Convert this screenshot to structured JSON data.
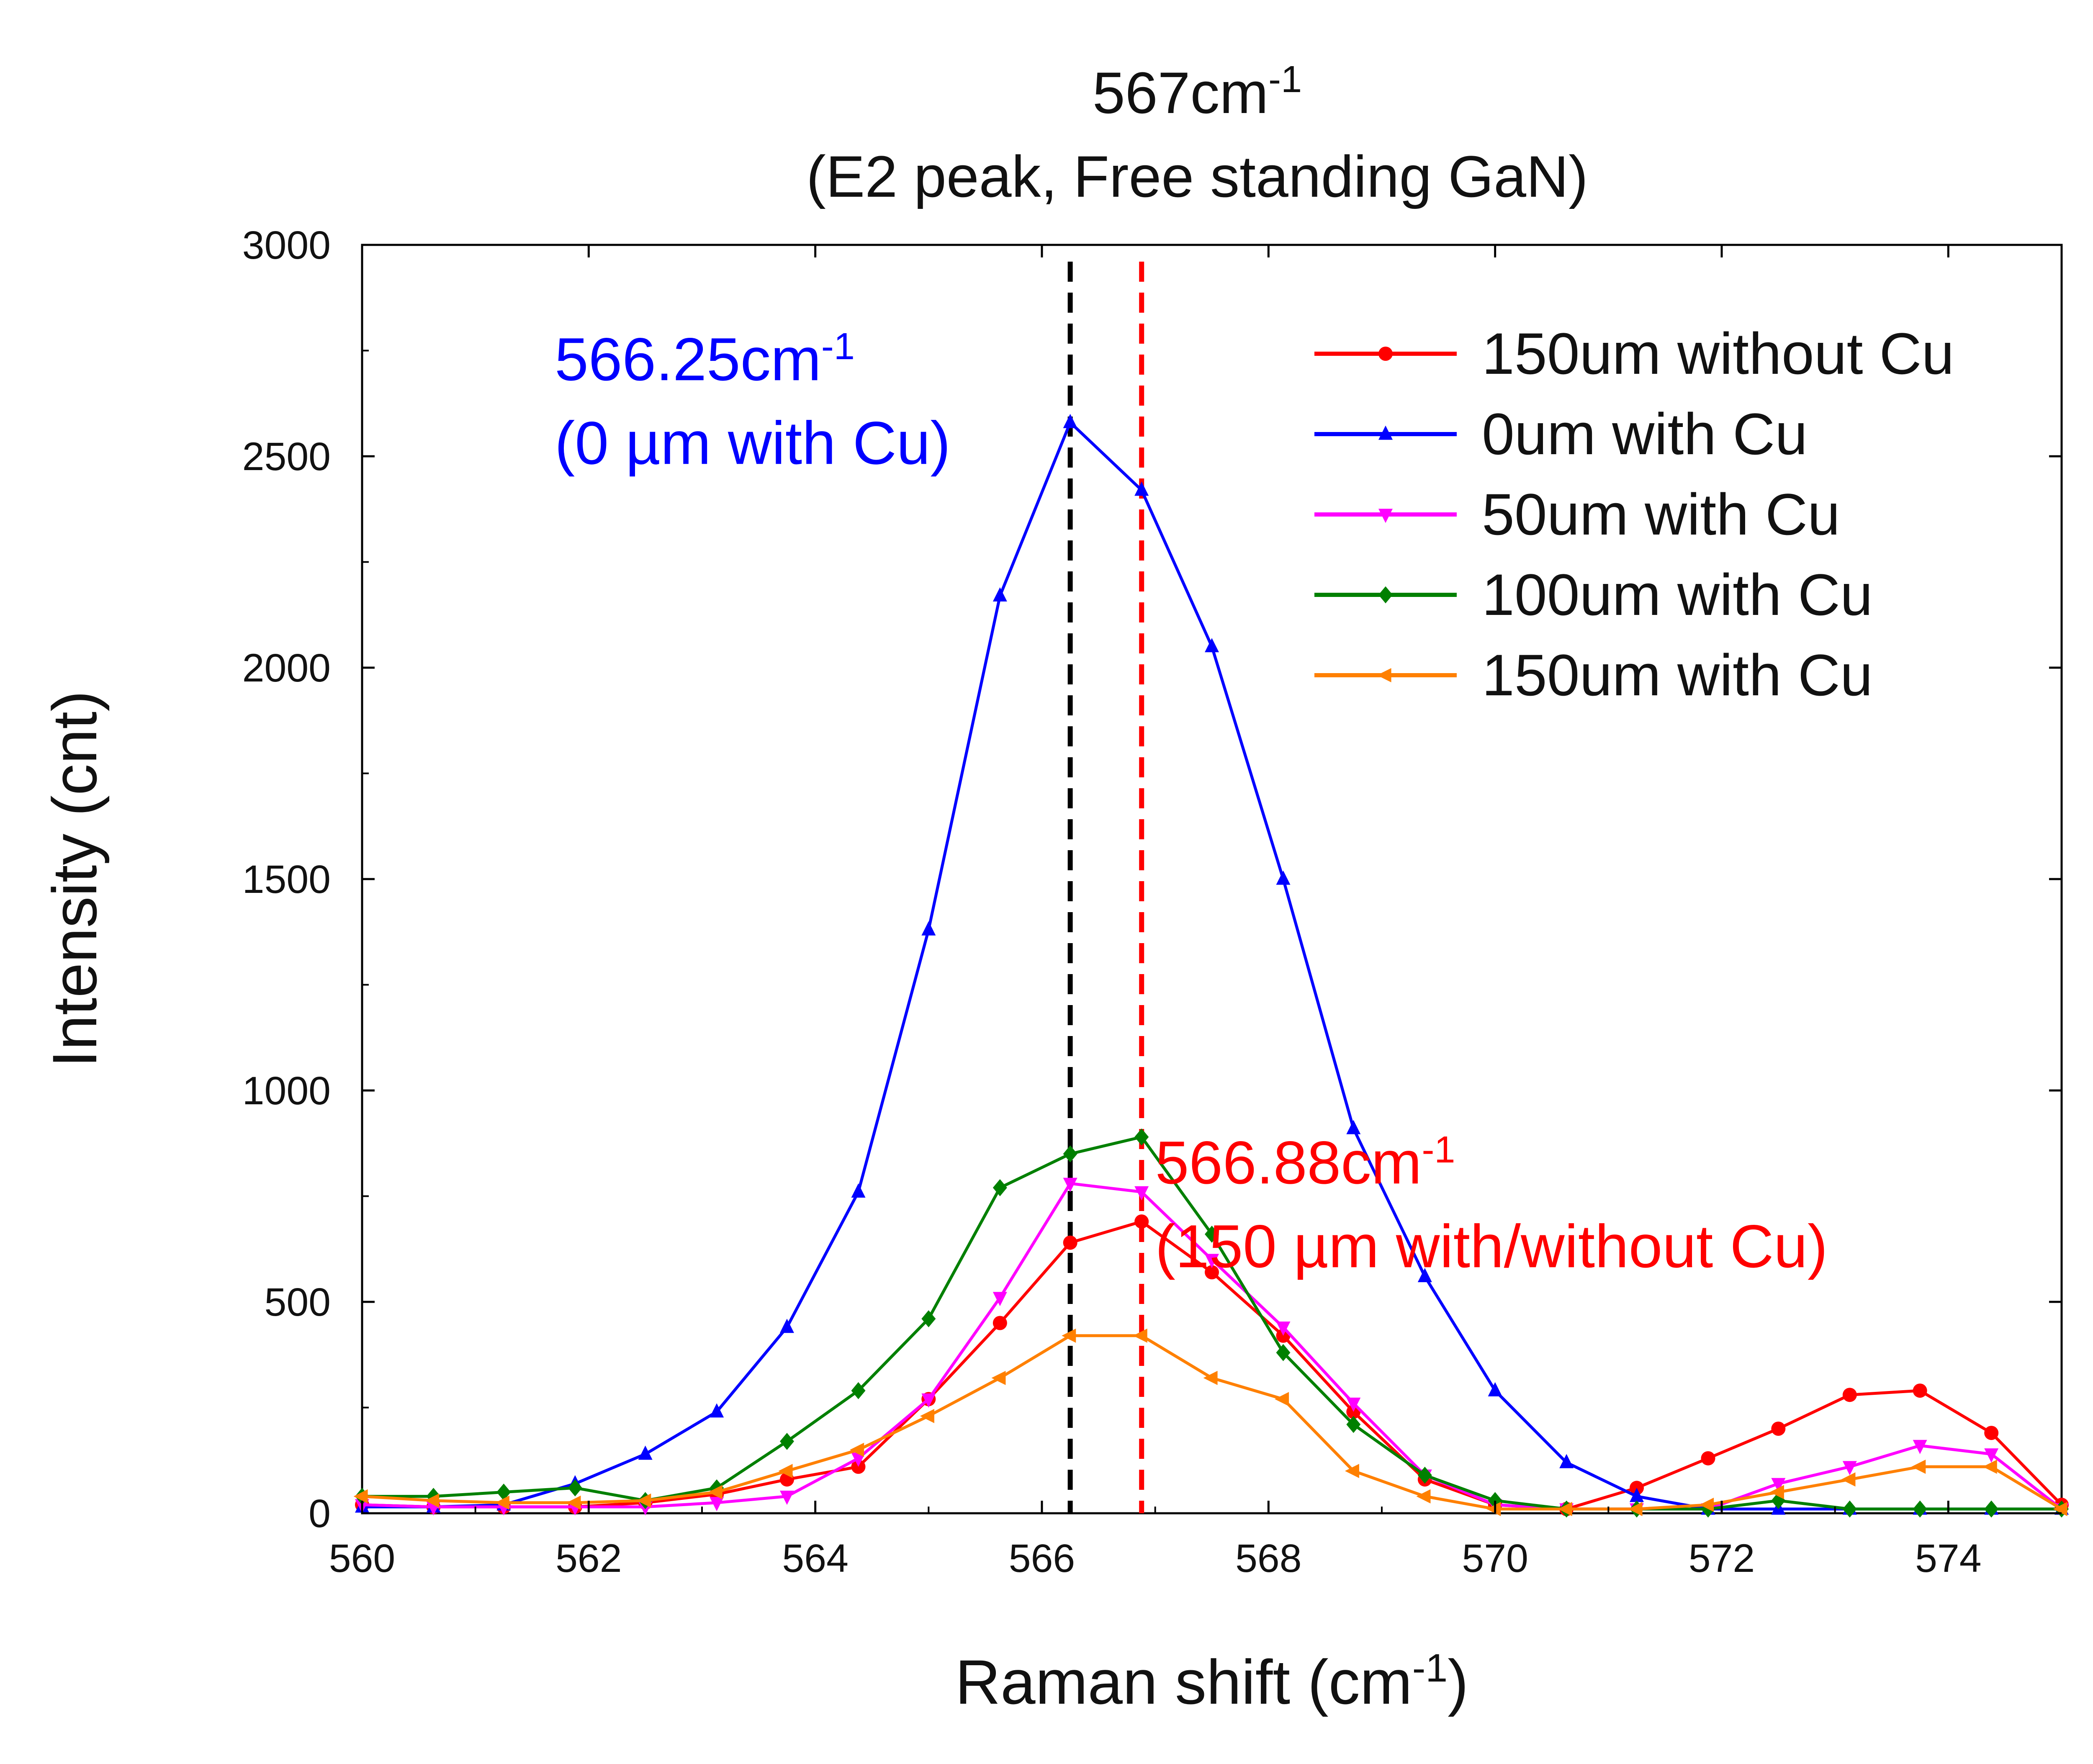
{
  "chart_data": {
    "type": "line",
    "title": {
      "line1_main": "567cm",
      "line1_sup": "-1",
      "line2": "(E2 peak, Free standing GaN)"
    },
    "xlabel": {
      "main": "Raman shift (cm",
      "sup": "-1",
      "close": ")"
    },
    "ylabel": "Intensity (cnt)",
    "xlim": [
      560,
      575
    ],
    "ylim": [
      0,
      3000
    ],
    "xticks": [
      560,
      562,
      564,
      566,
      568,
      570,
      572,
      574
    ],
    "yticks": [
      0,
      500,
      1000,
      1500,
      2000,
      2500,
      3000
    ],
    "xtick_labels": [
      "560",
      "562",
      "564",
      "566",
      "568",
      "570",
      "572",
      "574"
    ],
    "ytick_labels": [
      "0",
      "500",
      "1000",
      "1500",
      "2000",
      "2500",
      "3000"
    ],
    "grid": false,
    "legend_position": "top-right",
    "x": [
      560.0,
      560.63,
      561.25,
      561.88,
      562.5,
      563.13,
      563.75,
      564.38,
      565.0,
      565.63,
      566.25,
      566.88,
      567.5,
      568.13,
      568.75,
      569.38,
      570.0,
      570.63,
      571.25,
      571.88,
      572.5,
      573.13,
      573.75,
      574.38,
      575.0
    ],
    "series": [
      {
        "name": "150um without Cu",
        "color": "#ff0000",
        "marker": "circle",
        "values": [
          20,
          15,
          15,
          15,
          25,
          45,
          80,
          110,
          270,
          450,
          640,
          690,
          570,
          420,
          240,
          80,
          20,
          10,
          60,
          130,
          200,
          280,
          290,
          190,
          20
        ]
      },
      {
        "name": "0um with Cu",
        "color": "#0000ff",
        "marker": "triangle-up",
        "values": [
          15,
          15,
          20,
          70,
          140,
          240,
          440,
          760,
          1380,
          2170,
          2580,
          2420,
          2050,
          1500,
          910,
          560,
          290,
          120,
          40,
          10,
          10,
          10,
          10,
          10,
          10
        ]
      },
      {
        "name": "50um with Cu",
        "color": "#ff00ff",
        "marker": "triangle-down",
        "values": [
          20,
          15,
          15,
          15,
          15,
          25,
          40,
          130,
          270,
          510,
          780,
          760,
          600,
          440,
          260,
          90,
          20,
          10,
          10,
          10,
          70,
          110,
          160,
          140,
          10
        ]
      },
      {
        "name": "100um with Cu",
        "color": "#008000",
        "marker": "diamond",
        "values": [
          40,
          40,
          50,
          60,
          30,
          60,
          170,
          290,
          460,
          770,
          850,
          890,
          660,
          380,
          210,
          90,
          30,
          10,
          10,
          10,
          30,
          10,
          10,
          10,
          10
        ]
      },
      {
        "name": "150um with Cu",
        "color": "#ff8000",
        "marker": "triangle-left",
        "values": [
          40,
          30,
          25,
          25,
          30,
          50,
          100,
          150,
          230,
          320,
          420,
          420,
          320,
          270,
          100,
          40,
          10,
          10,
          10,
          20,
          50,
          80,
          110,
          110,
          10
        ]
      }
    ],
    "reference_lines": [
      {
        "x": 566.25,
        "color": "#000000",
        "style": "dashed"
      },
      {
        "x": 566.88,
        "color": "#ff0000",
        "style": "dashed"
      }
    ],
    "annotations": [
      {
        "lines": [
          {
            "main": "566.25cm",
            "sup": "-1"
          },
          {
            "main": "(0 µm with Cu)",
            "sup": ""
          }
        ],
        "color": "#0000ff",
        "anchor_x": 561.7,
        "anchor_y": 2680
      },
      {
        "lines": [
          {
            "main": "566.88cm",
            "sup": "-1"
          },
          {
            "main": "(150 µm with/without Cu)",
            "sup": ""
          }
        ],
        "color": "#ff0000",
        "anchor_x": 567.0,
        "anchor_y": 780
      }
    ]
  }
}
